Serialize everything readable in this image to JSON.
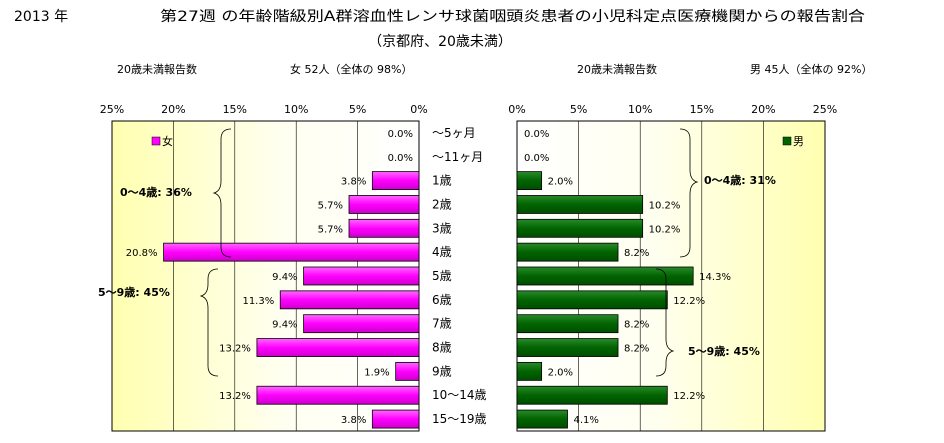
{
  "header": {
    "year": "2013 年",
    "title_line1": "第27週 の年齢階級別A群溶血性レンサ球菌咽頭炎患者の小児科定点医療機関からの報告割合",
    "title_line2": "（京都府、20歳未満）"
  },
  "left_panel": {
    "subtitle": "20歳未満報告数",
    "summary": "女  52人（全体の  98%）",
    "legend": "女",
    "bracket_labels": [
      "0～4歳:  36%",
      "5～9歳:  45%"
    ]
  },
  "right_panel": {
    "subtitle": "20歳未満報告数",
    "summary": "男  45人（全体の  92%）",
    "legend": "男",
    "bracket_labels": [
      "0～4歳:  31%",
      "5～9歳:  45%"
    ]
  },
  "chart_data": {
    "type": "bar",
    "orientation": "horizontal",
    "categories": [
      "～5ヶ月",
      "～11ヶ月",
      "1歳",
      "2歳",
      "3歳",
      "4歳",
      "5歳",
      "6歳",
      "7歳",
      "8歳",
      "9歳",
      "10～14歳",
      "15～19歳"
    ],
    "series": [
      {
        "name": "女",
        "color": "#ff00ff",
        "values": [
          0.0,
          0.0,
          3.8,
          5.7,
          5.7,
          20.8,
          9.4,
          11.3,
          9.4,
          13.2,
          1.9,
          13.2,
          3.8
        ],
        "labels": [
          "0.0%",
          "0.0%",
          "3.8%",
          "5.7%",
          "5.7%",
          "20.8%",
          "9.4%",
          "11.3%",
          "9.4%",
          "13.2%",
          "1.9%",
          "13.2%",
          "3.8%"
        ]
      },
      {
        "name": "男",
        "color": "#006400",
        "values": [
          0.0,
          0.0,
          2.0,
          10.2,
          10.2,
          8.2,
          14.3,
          12.2,
          8.2,
          8.2,
          2.0,
          12.2,
          4.1
        ],
        "labels": [
          "0.0%",
          "0.0%",
          "2.0%",
          "10.2%",
          "10.2%",
          "8.2%",
          "14.3%",
          "12.2%",
          "8.2%",
          "8.2%",
          "2.0%",
          "12.2%",
          "4.1%"
        ]
      }
    ],
    "xlim": [
      0,
      25
    ],
    "left_ticks": [
      "25%",
      "20%",
      "15%",
      "10%",
      "5%",
      "0%"
    ],
    "right_ticks": [
      "0%",
      "5%",
      "10%",
      "15%",
      "20%",
      "25%"
    ],
    "grid": true,
    "legend_placement": "top"
  }
}
